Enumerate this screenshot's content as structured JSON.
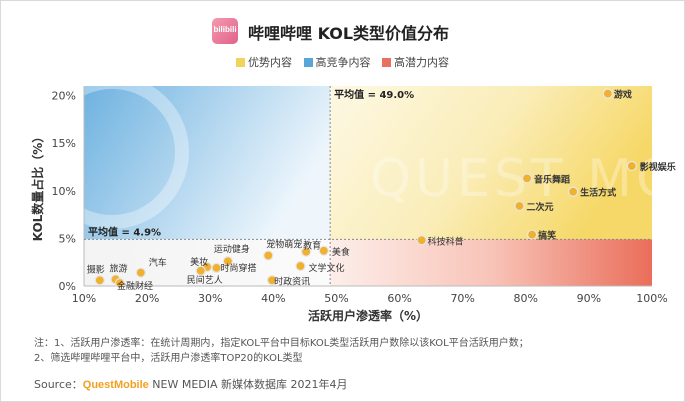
{
  "header": {
    "logo_text": "bilibili",
    "title": "哔哩哔哩 KOL类型价值分布"
  },
  "legend": [
    {
      "label": "优势内容",
      "color": "#f2d45a"
    },
    {
      "label": "高竞争内容",
      "color": "#5aa6d8"
    },
    {
      "label": "高潜力内容",
      "color": "#e87060"
    }
  ],
  "notes": {
    "line1": "注：1、活跃用户渗透率：在统计周期内，指定KOL平台中目标KOL类型活跃用户数除以该KOL平台活跃用户数；",
    "line2": "2、筛选哔哩哔哩平台中，活跃用户渗透率TOP20的KOL类型"
  },
  "source": {
    "prefix": "Source：",
    "brand": "QuestMobile",
    "suffix": " NEW MEDIA 新媒体数据库 2021年4月"
  },
  "watermark": "QUEST MOBILE",
  "chart_data": {
    "type": "scatter",
    "title": "哔哩哔哩 KOL类型价值分布",
    "xlabel": "活跃用户渗透率（%）",
    "ylabel": "KOL数量占比（%）",
    "xlim": [
      10,
      100
    ],
    "ylim": [
      0,
      21
    ],
    "x_ticks": [
      "10%",
      "20%",
      "30%",
      "40%",
      "50%",
      "60%",
      "70%",
      "80%",
      "90%",
      "100%"
    ],
    "y_ticks": [
      "0%",
      "5%",
      "10%",
      "15%",
      "20%"
    ],
    "x_tick_values": [
      10,
      20,
      30,
      40,
      50,
      60,
      70,
      80,
      90,
      100
    ],
    "y_tick_values": [
      0,
      5,
      10,
      15,
      20
    ],
    "averages": {
      "x": 49.0,
      "x_label": "平均值 = 49.0%",
      "y": 4.9,
      "y_label": "平均值 = 4.9%"
    },
    "marker_color": "#f0b030",
    "points": [
      {
        "label": "游戏",
        "x": 93.0,
        "y": 20.2
      },
      {
        "label": "影视娱乐",
        "x": 96.8,
        "y": 12.6
      },
      {
        "label": "音乐舞蹈",
        "x": 80.2,
        "y": 11.3
      },
      {
        "label": "生活方式",
        "x": 87.5,
        "y": 9.9
      },
      {
        "label": "二次元",
        "x": 79.0,
        "y": 8.4
      },
      {
        "label": "搞笑",
        "x": 81.0,
        "y": 5.4
      },
      {
        "label": "科技科普",
        "x": 63.5,
        "y": 4.8
      },
      {
        "label": "教育",
        "x": 45.2,
        "y": 3.6
      },
      {
        "label": "美食",
        "x": 48.0,
        "y": 3.7
      },
      {
        "label": "宠物萌宠",
        "x": 39.2,
        "y": 3.2
      },
      {
        "label": "运动健身",
        "x": 32.8,
        "y": 2.6
      },
      {
        "label": "汽车",
        "x": 19.0,
        "y": 1.4
      },
      {
        "label": "美妆",
        "x": 29.5,
        "y": 2.0
      },
      {
        "label": "时尚穿搭",
        "x": 31.0,
        "y": 1.9
      },
      {
        "label": "民间艺人",
        "x": 28.5,
        "y": 1.6
      },
      {
        "label": "文学文化",
        "x": 44.3,
        "y": 2.1
      },
      {
        "label": "时政资讯",
        "x": 39.8,
        "y": 0.6
      },
      {
        "label": "摄影",
        "x": 12.5,
        "y": 0.6
      },
      {
        "label": "旅游",
        "x": 15.0,
        "y": 0.7
      },
      {
        "label": "金融财经",
        "x": 15.7,
        "y": 0.3
      }
    ]
  }
}
